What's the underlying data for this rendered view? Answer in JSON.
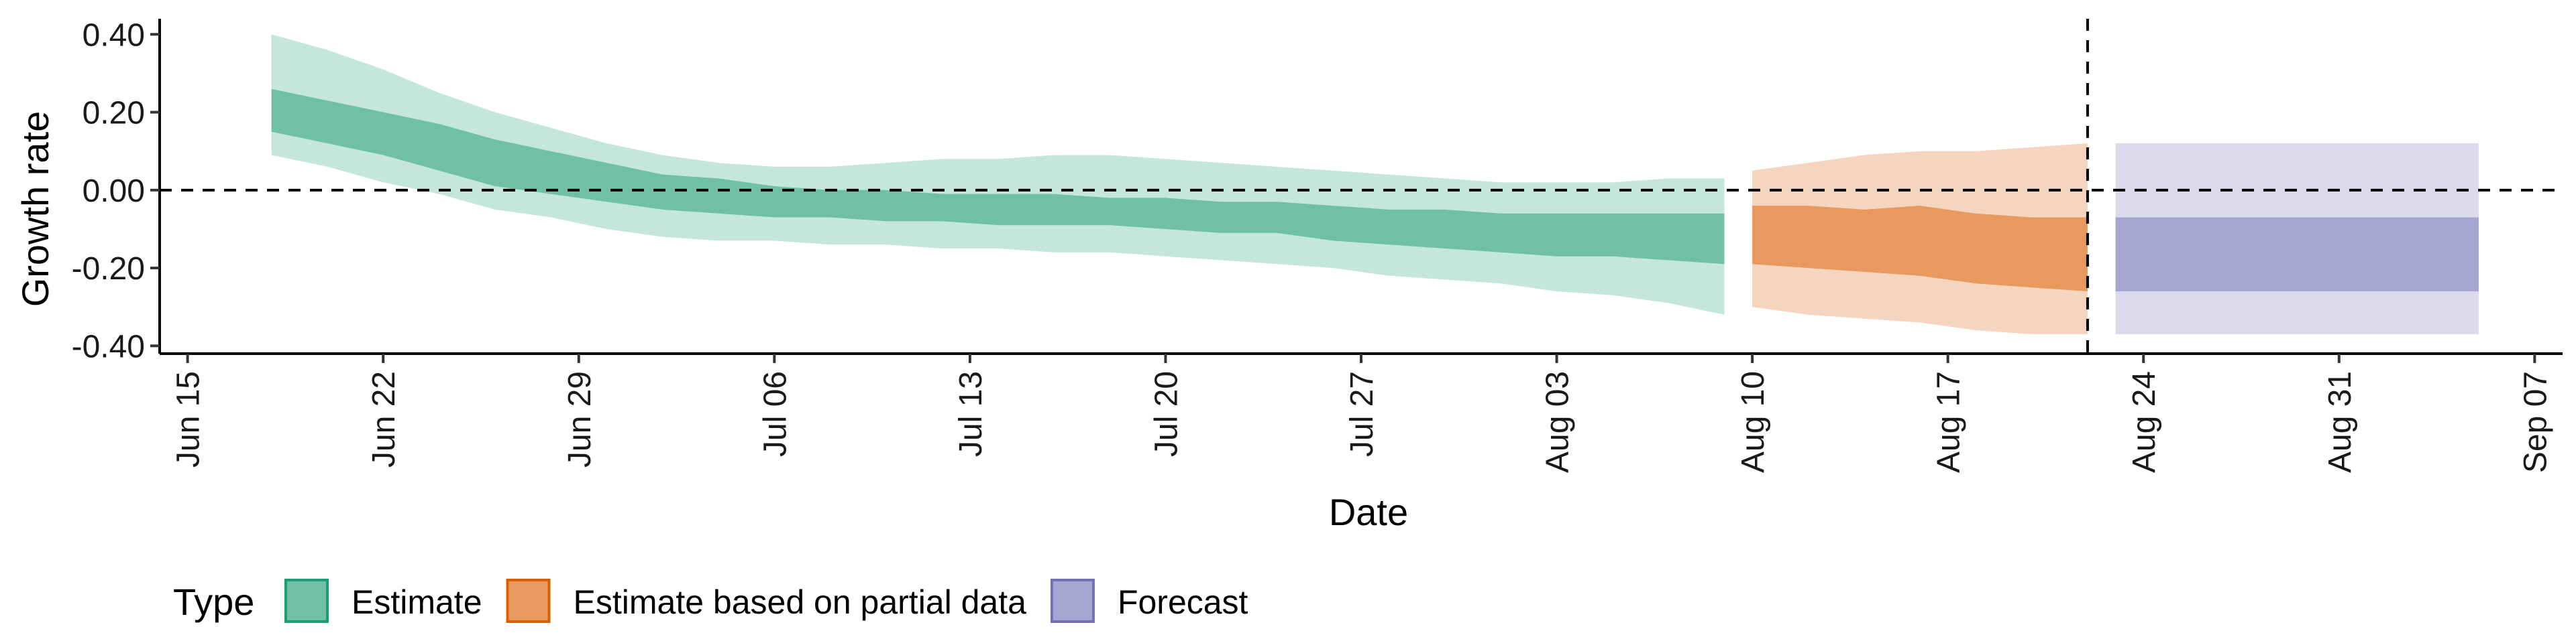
{
  "chart_data": {
    "type": "area",
    "title": "",
    "xlabel": "Date",
    "ylabel": "Growth rate",
    "x_range": [
      "2021-06-14",
      "2021-09-08"
    ],
    "ylim": [
      -0.42,
      0.44
    ],
    "y_ticks": [
      0.4,
      0.2,
      0.0,
      -0.2,
      -0.4
    ],
    "y_tick_labels": [
      "0.40",
      "0.20",
      "0.00",
      "-0.20",
      "-0.40"
    ],
    "x_ticks": [
      "2021-06-15",
      "2021-06-22",
      "2021-06-29",
      "2021-07-06",
      "2021-07-13",
      "2021-07-20",
      "2021-07-27",
      "2021-08-03",
      "2021-08-10",
      "2021-08-17",
      "2021-08-24",
      "2021-08-31",
      "2021-09-07"
    ],
    "x_tick_labels": [
      "Jun 15",
      "Jun 22",
      "Jun 29",
      "Jul 06",
      "Jul 13",
      "Jul 20",
      "Jul 27",
      "Aug 03",
      "Aug 10",
      "Aug 17",
      "Aug 24",
      "Aug 31",
      "Sep 07"
    ],
    "grid": false,
    "reference_lines": [
      {
        "axis": "y",
        "value": 0.0,
        "style": "dashed"
      },
      {
        "axis": "x",
        "value": "2021-08-22",
        "style": "dashed"
      }
    ],
    "legend": {
      "title": "Type",
      "position": "bottom",
      "entries": [
        {
          "label": "Estimate",
          "fill": "#6fc0a4",
          "border": "#1b9e77"
        },
        {
          "label": "Estimate based on partial data",
          "fill": "#e89a5e",
          "border": "#d95f02"
        },
        {
          "label": "Forecast",
          "fill": "#a8a4d0",
          "border": "#7570b3"
        }
      ]
    },
    "series": [
      {
        "name": "Estimate",
        "color_inner": "#6fc0a4",
        "color_outer": "#c5e7db",
        "x": [
          "2021-06-18",
          "2021-06-20",
          "2021-06-22",
          "2021-06-24",
          "2021-06-26",
          "2021-06-28",
          "2021-06-30",
          "2021-07-02",
          "2021-07-04",
          "2021-07-06",
          "2021-07-08",
          "2021-07-10",
          "2021-07-12",
          "2021-07-14",
          "2021-07-16",
          "2021-07-18",
          "2021-07-20",
          "2021-07-22",
          "2021-07-24",
          "2021-07-26",
          "2021-07-28",
          "2021-07-30",
          "2021-08-01",
          "2021-08-03",
          "2021-08-05",
          "2021-08-07",
          "2021-08-09"
        ],
        "lower_90": [
          0.09,
          0.06,
          0.02,
          -0.01,
          -0.05,
          -0.07,
          -0.1,
          -0.12,
          -0.13,
          -0.13,
          -0.14,
          -0.14,
          -0.15,
          -0.15,
          -0.16,
          -0.16,
          -0.17,
          -0.18,
          -0.19,
          -0.2,
          -0.22,
          -0.23,
          -0.24,
          -0.26,
          -0.27,
          -0.29,
          -0.32
        ],
        "lower_50": [
          0.15,
          0.12,
          0.09,
          0.05,
          0.01,
          -0.01,
          -0.03,
          -0.05,
          -0.06,
          -0.07,
          -0.07,
          -0.08,
          -0.08,
          -0.09,
          -0.09,
          -0.09,
          -0.1,
          -0.11,
          -0.11,
          -0.13,
          -0.14,
          -0.15,
          -0.16,
          -0.17,
          -0.17,
          -0.18,
          -0.19
        ],
        "upper_50": [
          0.26,
          0.23,
          0.2,
          0.17,
          0.13,
          0.1,
          0.07,
          0.04,
          0.03,
          0.01,
          0.0,
          0.0,
          -0.01,
          -0.01,
          -0.01,
          -0.02,
          -0.02,
          -0.03,
          -0.03,
          -0.04,
          -0.05,
          -0.05,
          -0.06,
          -0.06,
          -0.06,
          -0.06,
          -0.06
        ],
        "upper_90": [
          0.4,
          0.36,
          0.31,
          0.25,
          0.2,
          0.16,
          0.12,
          0.09,
          0.07,
          0.06,
          0.06,
          0.07,
          0.08,
          0.08,
          0.09,
          0.09,
          0.08,
          0.07,
          0.06,
          0.05,
          0.04,
          0.03,
          0.02,
          0.02,
          0.02,
          0.03,
          0.03
        ]
      },
      {
        "name": "Estimate based on partial data",
        "color_inner": "#e89a5e",
        "color_outer": "#f5d5bf",
        "x": [
          "2021-08-10",
          "2021-08-12",
          "2021-08-14",
          "2021-08-16",
          "2021-08-18",
          "2021-08-20",
          "2021-08-22"
        ],
        "lower_90": [
          -0.3,
          -0.32,
          -0.33,
          -0.34,
          -0.36,
          -0.37,
          -0.37
        ],
        "lower_50": [
          -0.19,
          -0.2,
          -0.21,
          -0.22,
          -0.24,
          -0.25,
          -0.26
        ],
        "upper_50": [
          -0.04,
          -0.04,
          -0.05,
          -0.04,
          -0.06,
          -0.07,
          -0.07
        ],
        "upper_90": [
          0.05,
          0.07,
          0.09,
          0.1,
          0.1,
          0.11,
          0.12
        ]
      },
      {
        "name": "Forecast",
        "color_inner": "#a8a4d0",
        "color_outer": "#dbdaec",
        "x": [
          "2021-08-23",
          "2021-09-05"
        ],
        "lower_90": [
          -0.37,
          -0.37
        ],
        "lower_50": [
          -0.26,
          -0.26
        ],
        "upper_50": [
          -0.07,
          -0.07
        ],
        "upper_90": [
          0.12,
          0.12
        ]
      }
    ]
  }
}
